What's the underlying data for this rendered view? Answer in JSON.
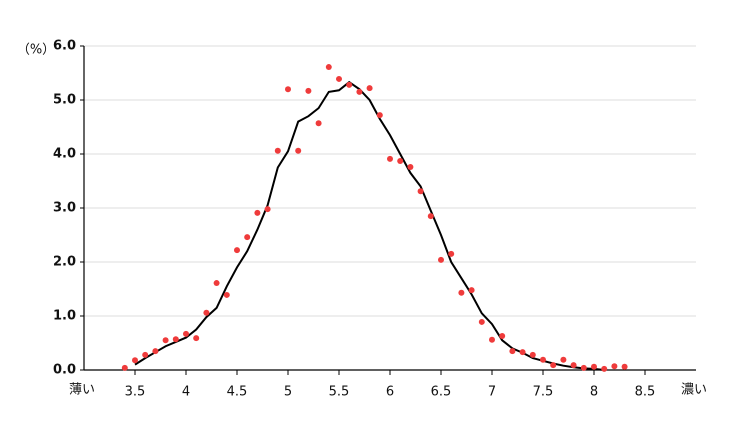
{
  "chart_data": {
    "type": "line",
    "ylabel": "（%）",
    "xlabel_left": "薄い",
    "xlabel_right": "濃い",
    "xlim": [
      3.0,
      9.0
    ],
    "xticks": [
      3.5,
      4,
      4.5,
      5,
      5.5,
      6,
      6.5,
      7,
      7.5,
      8,
      8.5
    ],
    "ylim": [
      0,
      6
    ],
    "yticks": [
      {
        "value": 0,
        "label": "0.0"
      },
      {
        "value": 1,
        "label": "1.0"
      },
      {
        "value": 2,
        "label": "2.0"
      },
      {
        "value": 3,
        "label": "3.0"
      },
      {
        "value": 4,
        "label": "4.0"
      },
      {
        "value": 5,
        "label": "5.0"
      },
      {
        "value": 6,
        "label": "6.0"
      }
    ],
    "grid": true,
    "series": [
      {
        "mode": "line",
        "color": "#000000",
        "x": [
          3.5,
          3.6,
          3.7,
          3.8,
          3.9,
          4.0,
          4.1,
          4.2,
          4.3,
          4.4,
          4.5,
          4.6,
          4.7,
          4.8,
          4.9,
          5.0,
          5.1,
          5.2,
          5.3,
          5.4,
          5.5,
          5.6,
          5.7,
          5.8,
          5.9,
          6.0,
          6.1,
          6.2,
          6.3,
          6.4,
          6.5,
          6.6,
          6.7,
          6.8,
          6.9,
          7.0,
          7.1,
          7.2,
          7.3,
          7.4,
          7.5,
          7.6,
          7.7,
          7.8,
          7.9,
          8.0,
          8.1
        ],
        "values": [
          0.1,
          0.22,
          0.33,
          0.44,
          0.52,
          0.6,
          0.75,
          0.98,
          1.15,
          1.55,
          1.9,
          2.2,
          2.6,
          3.05,
          3.75,
          4.05,
          4.6,
          4.7,
          4.85,
          5.15,
          5.18,
          5.33,
          5.2,
          5.0,
          4.65,
          4.35,
          4.0,
          3.65,
          3.4,
          2.95,
          2.5,
          2.0,
          1.7,
          1.4,
          1.05,
          0.85,
          0.55,
          0.4,
          0.32,
          0.22,
          0.17,
          0.12,
          0.08,
          0.05,
          0.03,
          0.02,
          0.0
        ]
      },
      {
        "mode": "markers",
        "color": "#ef3b3b",
        "x": [
          3.4,
          3.5,
          3.6,
          3.7,
          3.8,
          3.9,
          4.0,
          4.1,
          4.2,
          4.3,
          4.4,
          4.5,
          4.6,
          4.7,
          4.8,
          4.9,
          5.0,
          5.1,
          5.2,
          5.3,
          5.4,
          5.5,
          5.6,
          5.7,
          5.8,
          5.9,
          6.0,
          6.1,
          6.2,
          6.3,
          6.4,
          6.5,
          6.6,
          6.7,
          6.8,
          6.9,
          7.0,
          7.1,
          7.2,
          7.3,
          7.4,
          7.5,
          7.6,
          7.7,
          7.8,
          7.9,
          8.0,
          8.1,
          8.2,
          8.3
        ],
        "values": [
          0.04,
          0.18,
          0.28,
          0.35,
          0.55,
          0.57,
          0.67,
          0.59,
          1.06,
          1.61,
          1.39,
          2.22,
          2.46,
          2.91,
          2.98,
          4.06,
          5.2,
          4.06,
          5.17,
          4.57,
          5.61,
          5.39,
          5.28,
          5.15,
          5.22,
          4.72,
          3.91,
          3.87,
          3.76,
          3.31,
          2.85,
          2.04,
          2.15,
          1.43,
          1.48,
          0.89,
          0.56,
          0.63,
          0.35,
          0.33,
          0.28,
          0.19,
          0.09,
          0.19,
          0.09,
          0.04,
          0.06,
          0.02,
          0.07,
          0.06
        ]
      }
    ]
  }
}
